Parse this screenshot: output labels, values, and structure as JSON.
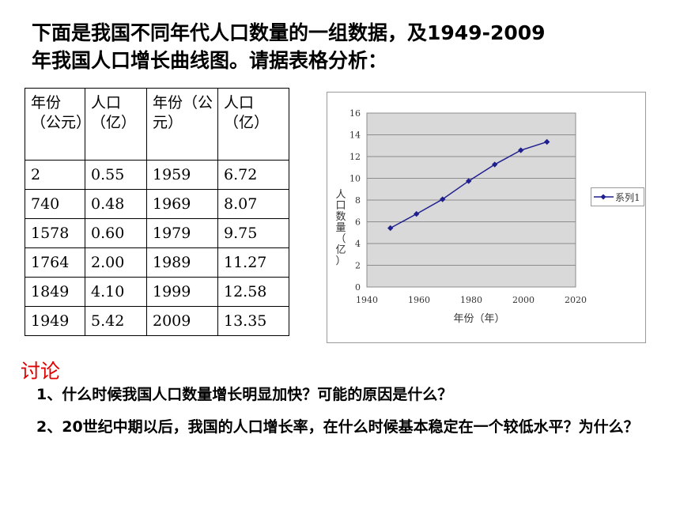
{
  "title": {
    "line1": "下面是我国不同年代人口数量的一组数据，及1949-2009",
    "line2": "年我国人口增长曲线图。请据表格分析："
  },
  "table": {
    "headers": [
      "年份（公元）",
      "人口（亿）",
      "年份（公元）",
      "人口（亿）"
    ],
    "rows": [
      [
        "2",
        "0.55",
        "1959",
        "6.72"
      ],
      [
        "740",
        "0.48",
        "1969",
        "8.07"
      ],
      [
        "1578",
        "0.60",
        "1979",
        "9.75"
      ],
      [
        "1764",
        "2.00",
        "1989",
        "11.27"
      ],
      [
        "1849",
        "4.10",
        "1999",
        "12.58"
      ],
      [
        "1949",
        "5.42",
        "2009",
        "13.35"
      ]
    ]
  },
  "chart_data": {
    "type": "line",
    "x": [
      1949,
      1959,
      1969,
      1979,
      1989,
      1999,
      2009
    ],
    "series": [
      {
        "name": "系列1",
        "values": [
          5.42,
          6.72,
          8.07,
          9.75,
          11.27,
          12.58,
          13.35
        ],
        "color": "#1f1f8f"
      }
    ],
    "xlabel": "年份（年）",
    "ylabel": "人口数量（亿）",
    "xlim": [
      1940,
      2020
    ],
    "ylim": [
      0,
      16
    ],
    "xticks": [
      1940,
      1960,
      1980,
      2000,
      2020
    ],
    "yticks": [
      0,
      2,
      4,
      6,
      8,
      10,
      12,
      14,
      16
    ],
    "grid": true,
    "plot_background": "#d9d9d9",
    "legend": "right"
  },
  "discussion": {
    "heading": "讨论",
    "q1": "1、什么时候我国人口数量增长明显加快？可能的原因是什么？",
    "q2": "2、20世纪中期以后，我国的人口增长率，在什么时候基本稳定在一个较低水平？为什么？"
  }
}
